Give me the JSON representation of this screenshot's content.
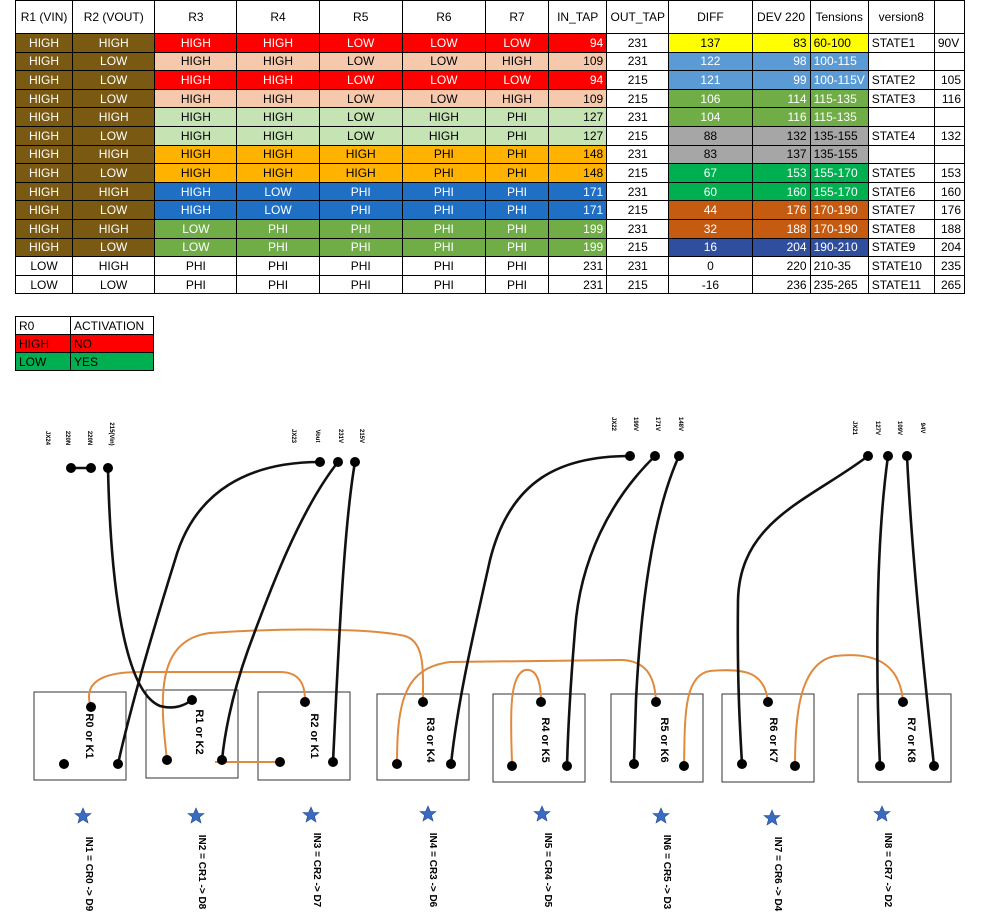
{
  "colors": {
    "brown": "#7a5a12",
    "red": "#ff0000",
    "peach": "#f6c9ad",
    "lightgreen": "#c6e3b4",
    "orange": "#ffb300",
    "blue": "#1f6fc5",
    "green": "#70ad47",
    "yellow": "#ffff00",
    "steelblue": "#5b9bd5",
    "gray": "#a6a6a6",
    "brightgreen": "#00b050",
    "rust": "#c55a11",
    "navy": "#2f4f9e",
    "white": "#ffffff"
  },
  "table": {
    "headers": [
      "R1 (VIN)",
      "R2 (VOUT)",
      "R3",
      "R4",
      "R5",
      "R6",
      "R7",
      "IN_TAP",
      "OUT_TAP",
      "DIFF",
      "DEV 220",
      "Tensions",
      "version8",
      ""
    ],
    "rows": [
      {
        "cells": [
          "HIGH",
          "HIGH",
          "HIGH",
          "HIGH",
          "LOW",
          "LOW",
          "LOW",
          "94",
          "231",
          "137",
          "83",
          "60-100",
          "STATE1",
          "90V"
        ],
        "rgroup": "red",
        "diffc": "yellow",
        "tensc": "yellow"
      },
      {
        "cells": [
          "HIGH",
          "LOW",
          "HIGH",
          "HIGH",
          "LOW",
          "LOW",
          "HIGH",
          "109",
          "231",
          "122",
          "98",
          "100-115",
          "",
          ""
        ],
        "rgroup": "peach",
        "diffc": "steelblue",
        "tensc": "steelblue"
      },
      {
        "cells": [
          "HIGH",
          "LOW",
          "HIGH",
          "HIGH",
          "LOW",
          "LOW",
          "LOW",
          "94",
          "215",
          "121",
          "99",
          "100-115V",
          "STATE2",
          "105"
        ],
        "rgroup": "red",
        "diffc": "steelblue",
        "tensc": "steelblue"
      },
      {
        "cells": [
          "HIGH",
          "LOW",
          "HIGH",
          "HIGH",
          "LOW",
          "LOW",
          "HIGH",
          "109",
          "215",
          "106",
          "114",
          "115-135",
          "STATE3",
          "116"
        ],
        "rgroup": "peach",
        "diffc": "green",
        "tensc": "green"
      },
      {
        "cells": [
          "HIGH",
          "HIGH",
          "HIGH",
          "HIGH",
          "LOW",
          "HIGH",
          "PHI",
          "127",
          "231",
          "104",
          "116",
          "115-135",
          "",
          ""
        ],
        "rgroup": "lightgreen",
        "diffc": "green",
        "tensc": "green"
      },
      {
        "cells": [
          "HIGH",
          "LOW",
          "HIGH",
          "HIGH",
          "LOW",
          "HIGH",
          "PHI",
          "127",
          "215",
          "88",
          "132",
          "135-155",
          "STATE4",
          "132"
        ],
        "rgroup": "lightgreen",
        "diffc": "gray",
        "tensc": "gray"
      },
      {
        "cells": [
          "HIGH",
          "HIGH",
          "HIGH",
          "HIGH",
          "HIGH",
          "PHI",
          "PHI",
          "148",
          "231",
          "83",
          "137",
          "135-155",
          "",
          ""
        ],
        "rgroup": "orange",
        "diffc": "gray",
        "tensc": "gray"
      },
      {
        "cells": [
          "HIGH",
          "LOW",
          "HIGH",
          "HIGH",
          "HIGH",
          "PHI",
          "PHI",
          "148",
          "215",
          "67",
          "153",
          "155-170",
          "STATE5",
          "153"
        ],
        "rgroup": "orange",
        "diffc": "brightgreen",
        "tensc": "brightgreen"
      },
      {
        "cells": [
          "HIGH",
          "HIGH",
          "HIGH",
          "LOW",
          "PHI",
          "PHI",
          "PHI",
          "171",
          "231",
          "60",
          "160",
          "155-170",
          "STATE6",
          "160"
        ],
        "rgroup": "blue",
        "diffc": "brightgreen",
        "tensc": "brightgreen"
      },
      {
        "cells": [
          "HIGH",
          "LOW",
          "HIGH",
          "LOW",
          "PHI",
          "PHI",
          "PHI",
          "171",
          "215",
          "44",
          "176",
          "170-190",
          "STATE7",
          "176"
        ],
        "rgroup": "blue",
        "diffc": "rust",
        "tensc": "rust"
      },
      {
        "cells": [
          "HIGH",
          "HIGH",
          "LOW",
          "PHI",
          "PHI",
          "PHI",
          "PHI",
          "199",
          "231",
          "32",
          "188",
          "170-190",
          "STATE8",
          "188"
        ],
        "rgroup": "green",
        "diffc": "rust",
        "tensc": "rust"
      },
      {
        "cells": [
          "HIGH",
          "LOW",
          "LOW",
          "PHI",
          "PHI",
          "PHI",
          "PHI",
          "199",
          "215",
          "16",
          "204",
          "190-210",
          "STATE9",
          "204"
        ],
        "rgroup": "green",
        "diffc": "navy",
        "tensc": "navy"
      },
      {
        "cells": [
          "LOW",
          "HIGH",
          "PHI",
          "PHI",
          "PHI",
          "PHI",
          "PHI",
          "231",
          "231",
          "0",
          "220",
          "210-35",
          "STATE10",
          "235"
        ],
        "rgroup": "white",
        "diffc": "white",
        "tensc": "white"
      },
      {
        "cells": [
          "LOW",
          "LOW",
          "PHI",
          "PHI",
          "PHI",
          "PHI",
          "PHI",
          "231",
          "215",
          "-16",
          "236",
          "235-265",
          "STATE11",
          "265"
        ],
        "rgroup": "white",
        "diffc": "white",
        "tensc": "white"
      }
    ]
  },
  "legend": {
    "header": [
      "R0",
      "ACTIVATION"
    ],
    "rows": [
      {
        "state": "HIGH",
        "activation": "NO",
        "color": "red"
      },
      {
        "state": "LOW",
        "activation": "YES",
        "color": "brightgreen"
      }
    ]
  },
  "diagram": {
    "connectors": [
      {
        "name": "JX24",
        "pins": [
          "220N",
          "220N",
          "215(Vin)"
        ]
      },
      {
        "name": "JX23",
        "pins": [
          "Vout",
          "231V",
          "215V"
        ]
      },
      {
        "name": "JX22",
        "pins": [
          "199V",
          "171V",
          "148V"
        ]
      },
      {
        "name": "JX21",
        "pins": [
          "127V",
          "109V",
          "94V"
        ]
      }
    ],
    "relays": [
      "R0 or K1",
      "R1 or K2",
      "R2 or K1",
      "R3 or K4",
      "R4 or K5",
      "R5 or K6",
      "R6 or K7",
      "R7 or K8"
    ],
    "inputs": [
      "IN1 = CR0 -> D9",
      "IN2 = CR1 -> D8",
      "IN3 = CR2 -> D7",
      "IN4 = CR3 -> D6",
      "IN5 = CR4 -> D5",
      "IN6 = CR5 -> D3",
      "IN7 = CR6 -> D4",
      "IN8 = CR7 -> D2"
    ]
  }
}
